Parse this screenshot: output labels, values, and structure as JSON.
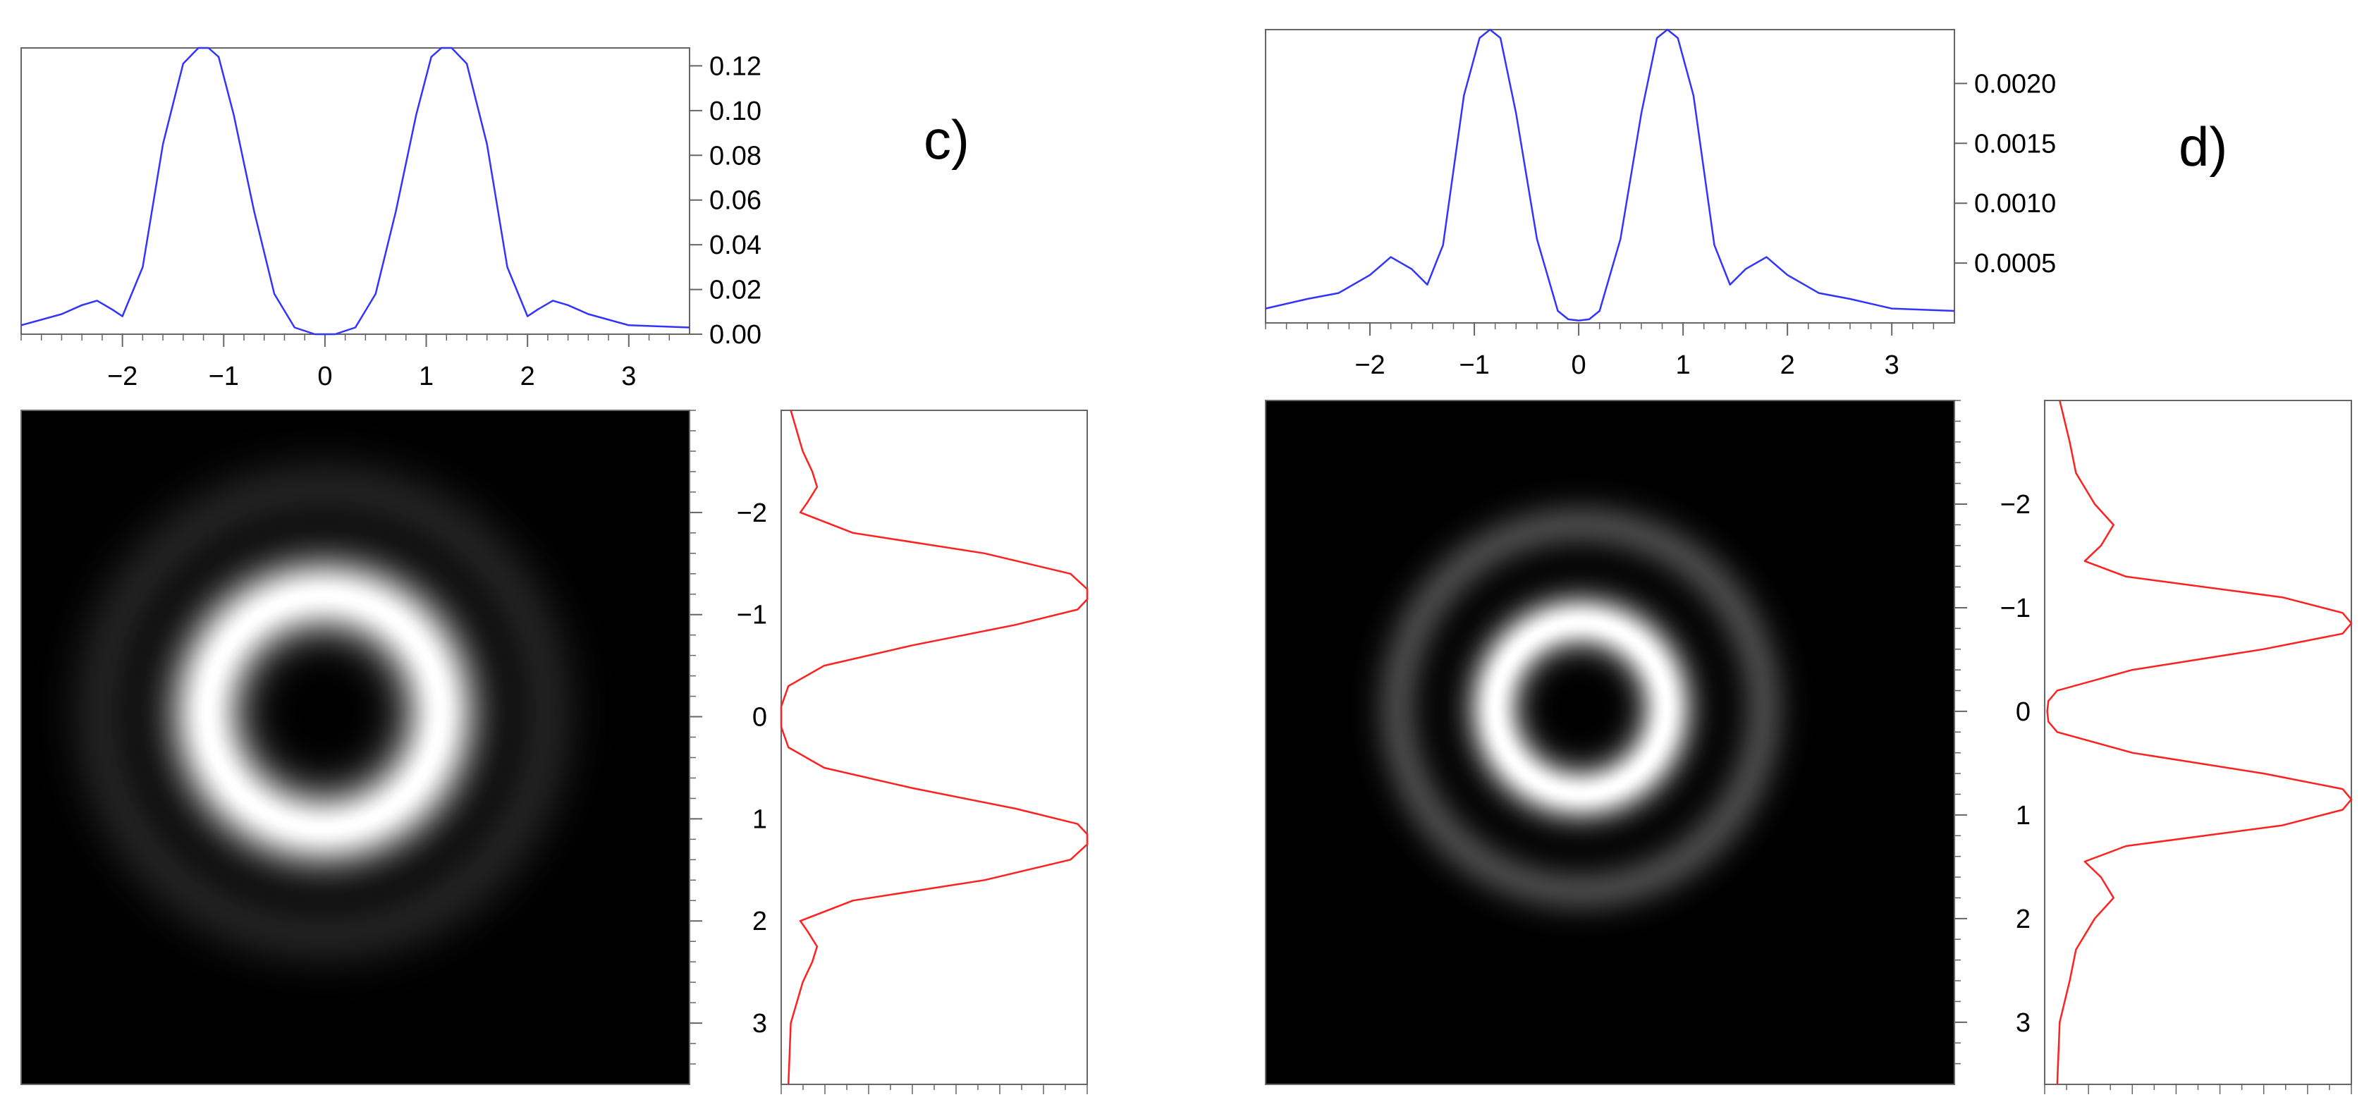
{
  "panels": [
    {
      "label": "c)",
      "chart_data": [
        {
          "type": "line",
          "role": "horizontal-profile",
          "color": "#3333ff",
          "xlim": [
            -3,
            3.6
          ],
          "ylim": [
            0,
            0.128
          ],
          "x_ticks": [
            -2,
            -1,
            0,
            1,
            2,
            3
          ],
          "x_tick_labels": [
            "−2",
            "−1",
            "0",
            "1",
            "2",
            "3"
          ],
          "y_ticks": [
            0,
            0.02,
            0.04,
            0.06,
            0.08,
            0.1,
            0.12
          ],
          "y_tick_labels": [
            "0.00",
            "0.02",
            "0.04",
            "0.06",
            "0.08",
            "0.10",
            "0.12"
          ],
          "x": [
            -3.0,
            -2.6,
            -2.4,
            -2.25,
            -2.1,
            -2.0,
            -1.8,
            -1.6,
            -1.4,
            -1.25,
            -1.15,
            -1.05,
            -0.9,
            -0.7,
            -0.5,
            -0.3,
            -0.1,
            0.0,
            0.1,
            0.3,
            0.5,
            0.7,
            0.9,
            1.05,
            1.15,
            1.25,
            1.4,
            1.6,
            1.8,
            2.0,
            2.1,
            2.25,
            2.4,
            2.6,
            3.0,
            3.6
          ],
          "y": [
            0.004,
            0.009,
            0.013,
            0.015,
            0.011,
            0.008,
            0.03,
            0.085,
            0.121,
            0.128,
            0.128,
            0.124,
            0.098,
            0.055,
            0.018,
            0.003,
            0.0,
            0.0,
            0.0,
            0.003,
            0.018,
            0.055,
            0.098,
            0.124,
            0.128,
            0.128,
            0.121,
            0.085,
            0.03,
            0.008,
            0.011,
            0.015,
            0.013,
            0.009,
            0.004,
            0.003
          ]
        },
        {
          "type": "heatmap",
          "role": "intensity-image",
          "xlim": [
            -3,
            3.6
          ],
          "ylim": [
            -3,
            3.6
          ],
          "ring_radius": 1.15,
          "ring_width": 0.38,
          "secondary_ring_radius": 2.2,
          "secondary_level": 0.12
        },
        {
          "type": "line",
          "role": "vertical-profile",
          "color": "#ff2020",
          "xlim": [
            0,
            0.128
          ],
          "ylim": [
            -3,
            3.6
          ],
          "y_ticks": [
            -2,
            -1,
            0,
            1,
            2,
            3
          ],
          "y_tick_labels": [
            "−2",
            "−1",
            "0",
            "1",
            "2",
            "3"
          ],
          "x": [
            0.004,
            0.009,
            0.013,
            0.015,
            0.011,
            0.008,
            0.03,
            0.085,
            0.121,
            0.128,
            0.128,
            0.124,
            0.098,
            0.055,
            0.018,
            0.003,
            0.0,
            0.0,
            0.0,
            0.003,
            0.018,
            0.055,
            0.098,
            0.124,
            0.128,
            0.128,
            0.121,
            0.085,
            0.03,
            0.008,
            0.011,
            0.015,
            0.013,
            0.009,
            0.004,
            0.003
          ],
          "y": [
            -3.0,
            -2.6,
            -2.4,
            -2.25,
            -2.1,
            -2.0,
            -1.8,
            -1.6,
            -1.4,
            -1.25,
            -1.15,
            -1.05,
            -0.9,
            -0.7,
            -0.5,
            -0.3,
            -0.1,
            0.0,
            0.1,
            0.3,
            0.5,
            0.7,
            0.9,
            1.05,
            1.15,
            1.25,
            1.4,
            1.6,
            1.8,
            2.0,
            2.1,
            2.25,
            2.4,
            2.6,
            3.0,
            3.6
          ]
        }
      ]
    },
    {
      "label": "d)",
      "chart_data": [
        {
          "type": "line",
          "role": "horizontal-profile",
          "color": "#3333ff",
          "xlim": [
            -3,
            3.6
          ],
          "ylim": [
            0,
            0.00245
          ],
          "x_ticks": [
            -2,
            -1,
            0,
            1,
            2,
            3
          ],
          "x_tick_labels": [
            "−2",
            "−1",
            "0",
            "1",
            "2",
            "3"
          ],
          "y_ticks": [
            0.0005,
            0.001,
            0.0015,
            0.002
          ],
          "y_tick_labels": [
            "0.0005",
            "0.0010",
            "0.0015",
            "0.0020"
          ],
          "x": [
            -3.0,
            -2.6,
            -2.3,
            -2.0,
            -1.8,
            -1.6,
            -1.45,
            -1.3,
            -1.1,
            -0.95,
            -0.85,
            -0.75,
            -0.6,
            -0.4,
            -0.2,
            -0.1,
            0.0,
            0.1,
            0.2,
            0.4,
            0.6,
            0.75,
            0.85,
            0.95,
            1.1,
            1.3,
            1.45,
            1.6,
            1.8,
            2.0,
            2.3,
            2.6,
            3.0,
            3.6
          ],
          "y": [
            0.00012,
            0.0002,
            0.00025,
            0.0004,
            0.00055,
            0.00045,
            0.00032,
            0.00065,
            0.0019,
            0.00238,
            0.00245,
            0.00238,
            0.00175,
            0.0007,
            0.0001,
            3e-05,
            2e-05,
            3e-05,
            0.0001,
            0.0007,
            0.00175,
            0.00238,
            0.00245,
            0.00238,
            0.0019,
            0.00065,
            0.00032,
            0.00045,
            0.00055,
            0.0004,
            0.00025,
            0.0002,
            0.00012,
            0.0001
          ]
        },
        {
          "type": "heatmap",
          "role": "intensity-image",
          "xlim": [
            -3,
            3.6
          ],
          "ylim": [
            -3,
            3.6
          ],
          "ring_radius": 0.82,
          "ring_width": 0.26,
          "secondary_ring_radius": 1.75,
          "secondary_level": 0.26
        },
        {
          "type": "line",
          "role": "vertical-profile",
          "color": "#ff2020",
          "xlim": [
            0,
            0.00245
          ],
          "ylim": [
            -3,
            3.6
          ],
          "y_ticks": [
            -2,
            -1,
            0,
            1,
            2,
            3
          ],
          "y_tick_labels": [
            "−2",
            "−1",
            "0",
            "1",
            "2",
            "3"
          ],
          "x": [
            0.00012,
            0.0002,
            0.00025,
            0.0004,
            0.00055,
            0.00045,
            0.00032,
            0.00065,
            0.0019,
            0.00238,
            0.00245,
            0.00238,
            0.00175,
            0.0007,
            0.0001,
            3e-05,
            2e-05,
            3e-05,
            0.0001,
            0.0007,
            0.00175,
            0.00238,
            0.00245,
            0.00238,
            0.0019,
            0.00065,
            0.00032,
            0.00045,
            0.00055,
            0.0004,
            0.00025,
            0.0002,
            0.00012,
            0.0001
          ],
          "y": [
            -3.0,
            -2.6,
            -2.3,
            -2.0,
            -1.8,
            -1.6,
            -1.45,
            -1.3,
            -1.1,
            -0.95,
            -0.85,
            -0.75,
            -0.6,
            -0.4,
            -0.2,
            -0.1,
            0.0,
            0.1,
            0.2,
            0.4,
            0.6,
            0.75,
            0.85,
            0.95,
            1.1,
            1.3,
            1.45,
            1.6,
            1.8,
            2.0,
            2.3,
            2.6,
            3.0,
            3.6
          ]
        }
      ]
    }
  ]
}
